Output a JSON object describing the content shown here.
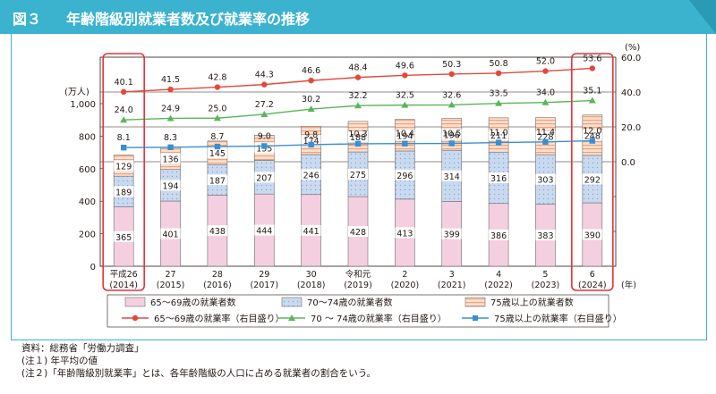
{
  "header": {
    "figure_no": "図３",
    "title": "年齢階級別就業者数及び就業率の推移"
  },
  "chart_data": {
    "type": "bar",
    "left_unit": "(万人)",
    "right_unit": "(%)",
    "year_unit": "(年)",
    "left_ticks": [
      "0",
      "200",
      "400",
      "600",
      "800",
      "1,000"
    ],
    "right_ticks": [
      "0.0",
      "20.0",
      "40.0",
      "60.0"
    ],
    "left_ylim": [
      0,
      1000
    ],
    "right_ylim": [
      -60,
      60
    ],
    "categories": [
      {
        "era": "平成26",
        "year": "(2014)"
      },
      {
        "era": "27",
        "year": "(2015)"
      },
      {
        "era": "28",
        "year": "(2016)"
      },
      {
        "era": "29",
        "year": "(2017)"
      },
      {
        "era": "30",
        "year": "(2018)"
      },
      {
        "era": "令和元",
        "year": "(2019)"
      },
      {
        "era": "2",
        "year": "(2020)"
      },
      {
        "era": "3",
        "year": "(2021)"
      },
      {
        "era": "4",
        "year": "(2022)"
      },
      {
        "era": "5",
        "year": "(2023)"
      },
      {
        "era": "6",
        "year": "(2024)"
      }
    ],
    "bars": [
      {
        "name": "65～69歳の就業者数",
        "color": "#f4cfe0",
        "values": [
          365,
          401,
          438,
          444,
          441,
          428,
          413,
          399,
          386,
          383,
          390
        ]
      },
      {
        "name": "70～74歳の就業者数",
        "color": "#c9daf0",
        "values": [
          189,
          194,
          187,
          207,
          246,
          275,
          296,
          314,
          316,
          303,
          292
        ]
      },
      {
        "name": "75歳以上の就業者数",
        "color": "#fbe0d0",
        "values": [
          129,
          136,
          145,
          155,
          174,
          188,
          194,
          196,
          211,
          228,
          248
        ]
      }
    ],
    "lines": [
      {
        "name": "65～69歳の就業率（右目盛り）",
        "color": "#e2483d",
        "marker": "circle",
        "values": [
          40.1,
          41.5,
          42.8,
          44.3,
          46.6,
          48.4,
          49.6,
          50.3,
          50.8,
          52.0,
          53.6
        ]
      },
      {
        "name": "70 ～ 74歳の就業率（右目盛り）",
        "color": "#5bb55a",
        "marker": "triangle",
        "values": [
          24.0,
          24.9,
          25.0,
          27.2,
          30.2,
          32.2,
          32.5,
          32.6,
          33.5,
          34.0,
          35.1
        ]
      },
      {
        "name": "75歳以上の就業率（右目盛り）",
        "color": "#3a8fd0",
        "marker": "square",
        "values": [
          8.1,
          8.3,
          8.7,
          9.0,
          9.8,
          10.3,
          10.4,
          10.5,
          11.0,
          11.4,
          12.0
        ]
      }
    ],
    "highlight_colour": "#e8303a"
  },
  "notes": [
    "資料：総務省「労働力調査」",
    "(注１) 年平均の値",
    "(注２)「年齢階級別就業率」とは、各年齢階級の人口に占める就業者の割合をいう。"
  ]
}
